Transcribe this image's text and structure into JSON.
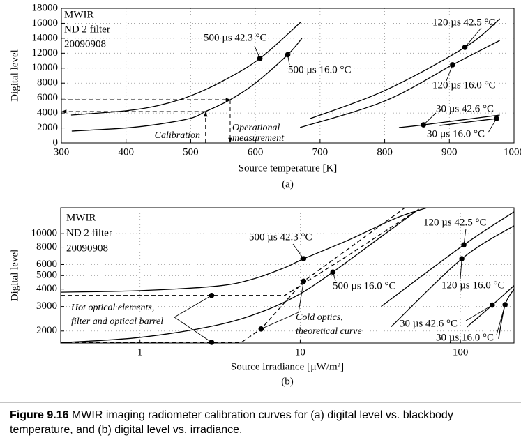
{
  "chart_data": [
    {
      "type": "line",
      "panel": "(a)",
      "xlabel": "Source temperature [K]",
      "ylabel": "Digital level",
      "notes": [
        "MWIR",
        "ND 2 filter",
        "20090908"
      ],
      "xlim": [
        300,
        1000
      ],
      "ylim": [
        0,
        18000
      ],
      "xticks": [
        300,
        400,
        500,
        600,
        700,
        800,
        900,
        1000
      ],
      "yticks": [
        0,
        2000,
        4000,
        6000,
        8000,
        10000,
        12000,
        14000,
        16000,
        18000
      ],
      "grid": true,
      "series": [
        {
          "name": "500 µs  42.3 °C",
          "color": "#000000",
          "x": [
            315,
            400,
            450,
            500,
            550,
            607,
            671
          ],
          "values": [
            3730,
            4300,
            5000,
            6300,
            8300,
            11300,
            16230
          ],
          "marker": [
            607,
            11300
          ]
        },
        {
          "name": "500 µs 16.0 °C",
          "color": "#000000",
          "x": [
            316,
            400,
            450,
            500,
            523,
            561,
            600,
            650,
            672
          ],
          "values": [
            1585,
            2000,
            2500,
            3300,
            4200,
            5780,
            8000,
            11800,
            14000
          ],
          "marker": [
            650,
            11800
          ]
        },
        {
          "name": "120 µs 42.5 °C",
          "color": "#000000",
          "x": [
            685,
            800,
            924,
            978
          ],
          "values": [
            3260,
            7000,
            12780,
            16600
          ],
          "marker": [
            924,
            12780
          ]
        },
        {
          "name": "120 µs 16.0 °C",
          "color": "#000000",
          "x": [
            669,
            800,
            905,
            978
          ],
          "values": [
            2050,
            5600,
            10450,
            13710
          ],
          "marker": [
            905,
            10450
          ]
        },
        {
          "name": "30 µs 42.6 °C",
          "color": "#000000",
          "x": [
            822,
            860,
            978
          ],
          "values": [
            2050,
            2420,
            3730
          ],
          "marker": [
            860,
            2420
          ]
        },
        {
          "name": "30 µs 16.0 °C",
          "color": "#000000",
          "x": [
            885,
            973
          ],
          "values": [
            2330,
            3260
          ],
          "marker": [
            973,
            3260
          ]
        }
      ],
      "guides": [
        {
          "x": 523,
          "y": 4200,
          "label": [
            "Calibration"
          ]
        },
        {
          "x": 561,
          "y": 5780,
          "label": [
            "Operational",
            "measurement"
          ]
        }
      ]
    },
    {
      "type": "line",
      "panel": "(b)",
      "xlabel": "Source irradiance [µW/m²]",
      "ylabel": "Digital level",
      "notes": [
        "MWIR",
        "ND 2 filter",
        "20090908"
      ],
      "xscale": "log",
      "yscale": "log",
      "xlim": [
        0.32,
        216
      ],
      "ylim": [
        1640,
        15350
      ],
      "xticks": [
        1,
        10,
        100
      ],
      "yticks": [
        2000,
        3000,
        4000,
        5000,
        6000,
        8000,
        10000
      ],
      "grid": true,
      "series": [
        {
          "name": "500 µs  42.3 °C",
          "color": "#000000",
          "x": [
            0.32,
            1,
            3,
            5,
            8,
            10.5,
            20,
            40,
            62
          ],
          "values": [
            3800,
            3900,
            4200,
            4700,
            5700,
            6600,
            9000,
            13000,
            15350
          ],
          "marker": [
            10.5,
            6600
          ]
        },
        {
          "name": "500 µs 16.0 °C",
          "color": "#000000",
          "x": [
            0.32,
            1,
            3,
            6,
            10,
            16,
            30,
            55
          ],
          "values": [
            1650,
            1800,
            2200,
            2800,
            3700,
            5300,
            9000,
            15000
          ],
          "marker": [
            16,
            5300
          ]
        },
        {
          "name": "120 µs 42.5 °C",
          "color": "#000000",
          "x": [
            32,
            105,
            216
          ],
          "values": [
            3000,
            8300,
            14350
          ],
          "marker": [
            105,
            8300
          ]
        },
        {
          "name": "120 µs 16.0 °C",
          "color": "#000000",
          "x": [
            37,
            102,
            216
          ],
          "values": [
            2150,
            6600,
            11400
          ],
          "marker": [
            102,
            6600
          ]
        },
        {
          "name": "30 µs 42.6 °C",
          "color": "#000000",
          "x": [
            110,
            158,
            216
          ],
          "values": [
            2140,
            3070,
            4240
          ],
          "marker": [
            158,
            3070
          ]
        },
        {
          "name": "30 µs 16.0 °C",
          "color": "#000000",
          "x": [
            173,
            190,
            216
          ],
          "values": [
            1760,
            3090,
            4000
          ],
          "marker": [
            190,
            3090
          ]
        },
        {
          "color": "#000000",
          "dashed": true,
          "x": [
            0.32,
            8,
            20,
            55
          ],
          "values": [
            3600,
            3600,
            7000,
            15000
          ]
        },
        {
          "color": "#000000",
          "dashed": true,
          "x": [
            0.32,
            4.3,
            5.7,
            10.5,
            20,
            45
          ],
          "values": [
            1660,
            1660,
            2070,
            4550,
            7800,
            15350
          ]
        }
      ],
      "annotations": [
        {
          "lines": [
            "Hot optical elements,",
            "filter and optical barrel"
          ],
          "points": [
            [
              2.8,
              3600
            ],
            [
              2.8,
              1660
            ]
          ]
        },
        {
          "lines": [
            "Cold optics,",
            "theoretical curve"
          ],
          "points": [
            [
              10.5,
              4550
            ],
            [
              5.7,
              2070
            ]
          ]
        }
      ]
    }
  ],
  "caption": {
    "label": "Figure 9.16",
    "text": "MWIR imaging radiometer calibration curves for (a) digital level vs. blackbody temperature, and (b) digital level vs. irradiance."
  }
}
